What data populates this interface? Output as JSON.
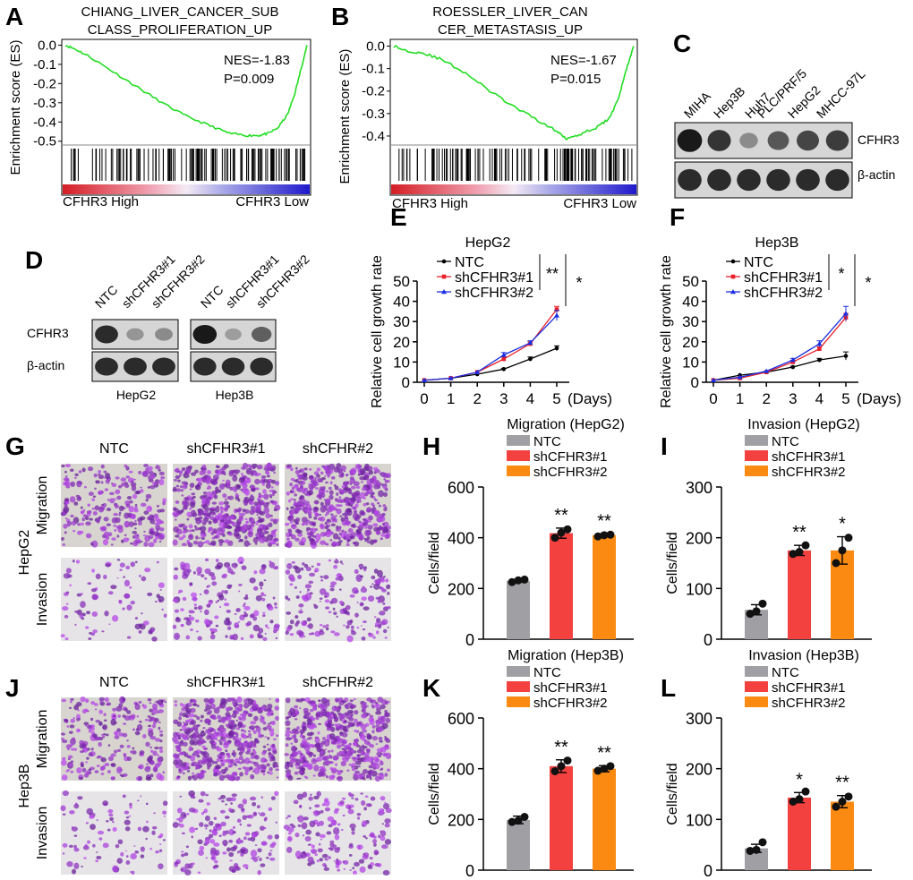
{
  "colors": {
    "green": "#22dd22",
    "ntc_line": "#000000",
    "sh1_line": "#e8202a",
    "sh2_line": "#1a2ee0",
    "bar_ntc": "#a0a0a4",
    "bar_sh1": "#f2413f",
    "bar_sh2": "#fa8a12",
    "hm_low": "#1f18cc",
    "hm_high": "#d41d24"
  },
  "panels": {
    "A": "A",
    "B": "B",
    "C": "C",
    "D": "D",
    "E": "E",
    "F": "F",
    "G": "G",
    "H": "H",
    "I": "I",
    "J": "J",
    "K": "K",
    "L": "L"
  },
  "gsea": {
    "ylabel": "Enrichment score (ES)",
    "xleft": "CFHR3 High",
    "xright": "CFHR3 Low",
    "A": {
      "title1": "CHIANG_LIVER_CANCER_SUB",
      "title2": "CLASS_PROLIFERATION_UP",
      "nes": "NES=-1.83",
      "p": "P=0.009",
      "yticks": [
        "0.0",
        "-0.1",
        "-0.2",
        "-0.3",
        "-0.4",
        "-0.5"
      ],
      "ylim": [
        -0.52,
        0.03
      ],
      "curve": [
        [
          0,
          0.0
        ],
        [
          0.04,
          -0.02
        ],
        [
          0.1,
          -0.06
        ],
        [
          0.2,
          -0.14
        ],
        [
          0.3,
          -0.22
        ],
        [
          0.4,
          -0.3
        ],
        [
          0.5,
          -0.37
        ],
        [
          0.6,
          -0.42
        ],
        [
          0.68,
          -0.46
        ],
        [
          0.75,
          -0.47
        ],
        [
          0.8,
          -0.47
        ],
        [
          0.84,
          -0.46
        ],
        [
          0.88,
          -0.43
        ],
        [
          0.92,
          -0.36
        ],
        [
          0.95,
          -0.25
        ],
        [
          0.98,
          -0.1
        ],
        [
          1.0,
          0.0
        ]
      ]
    },
    "B": {
      "title1": "ROESSLER_LIVER_CAN",
      "title2": "CER_METASTASIS_UP",
      "nes": "NES=-1.67",
      "p": "P=0.015",
      "yticks": [
        "0.0",
        "-0.1",
        "-0.2",
        "-0.3",
        "-0.4"
      ],
      "ylim": [
        -0.44,
        0.03
      ],
      "curve": [
        [
          0,
          0.0
        ],
        [
          0.05,
          -0.02
        ],
        [
          0.12,
          -0.03
        ],
        [
          0.2,
          -0.06
        ],
        [
          0.3,
          -0.12
        ],
        [
          0.4,
          -0.2
        ],
        [
          0.5,
          -0.27
        ],
        [
          0.6,
          -0.33
        ],
        [
          0.68,
          -0.38
        ],
        [
          0.72,
          -0.41
        ],
        [
          0.78,
          -0.39
        ],
        [
          0.85,
          -0.36
        ],
        [
          0.9,
          -0.32
        ],
        [
          0.94,
          -0.22
        ],
        [
          0.97,
          -0.1
        ],
        [
          1.0,
          0.0
        ]
      ]
    }
  },
  "blotC": {
    "lanes": [
      "MIHA",
      "Hep3B",
      "Huh7",
      "PLC/PRF/5",
      "HepG2",
      "MHCC-97L"
    ],
    "row1": "CFHR3",
    "row2": "β-actin",
    "intensity": [
      1.0,
      0.85,
      0.35,
      0.65,
      0.75,
      0.8
    ]
  },
  "blotD": {
    "lanes": [
      "NTC",
      "shCFHR3#1",
      "shCFHR3#2",
      "NTC",
      "shCFHR3#1",
      "shCFHR3#2"
    ],
    "row1": "CFHR3",
    "row2": "β-actin",
    "cell1": "HepG2",
    "cell2": "Hep3B",
    "intensity": [
      0.9,
      0.3,
      0.35,
      1.0,
      0.25,
      0.6
    ]
  },
  "chart_data": [
    {
      "panel": "E",
      "type": "line",
      "title": "HepG2",
      "ylabel": "Relative cell growth rate",
      "xlabel": "(Days)",
      "x": [
        0,
        1,
        2,
        3,
        4,
        5
      ],
      "ylim": [
        0,
        50
      ],
      "yticks": [
        0,
        10,
        20,
        30,
        40,
        50
      ],
      "series": [
        {
          "name": "NTC",
          "values": [
            1,
            2,
            4,
            6.5,
            11.5,
            16.8
          ],
          "err": [
            0,
            0,
            0,
            0.4,
            1,
            1.2
          ]
        },
        {
          "name": "shCFHR3#1",
          "values": [
            1,
            2,
            5,
            11.5,
            19,
            36
          ],
          "err": [
            0,
            0,
            0,
            1,
            1,
            1.5
          ]
        },
        {
          "name": "shCFHR3#2",
          "values": [
            1,
            2,
            5,
            13.5,
            19.5,
            33
          ],
          "err": [
            0,
            0,
            0,
            1.2,
            1,
            2.5
          ]
        }
      ],
      "sig": [
        "**",
        "*"
      ]
    },
    {
      "panel": "F",
      "type": "line",
      "title": "Hep3B",
      "ylabel": "Relative cell growth rate",
      "xlabel": "(Days)",
      "x": [
        0,
        1,
        2,
        3,
        4,
        5
      ],
      "ylim": [
        0,
        50
      ],
      "yticks": [
        0,
        10,
        20,
        30,
        40,
        50
      ],
      "series": [
        {
          "name": "NTC",
          "values": [
            1,
            3.5,
            5,
            7.5,
            11,
            13
          ],
          "err": [
            0,
            0,
            0,
            0.4,
            0.8,
            2
          ]
        },
        {
          "name": "shCFHR3#1",
          "values": [
            1,
            2,
            5,
            10,
            16.5,
            32
          ],
          "err": [
            0,
            0,
            0,
            0.8,
            1,
            2
          ]
        },
        {
          "name": "shCFHR3#2",
          "values": [
            1,
            2.5,
            5.5,
            11,
            19,
            34
          ],
          "err": [
            0,
            0,
            0,
            0.8,
            1.5,
            3.5
          ]
        }
      ],
      "sig": [
        "*",
        "*"
      ]
    },
    {
      "panel": "H",
      "type": "bar",
      "title": "Migration (HepG2)",
      "ylabel": "Cells/field",
      "ylim": [
        0,
        600
      ],
      "yticks": [
        0,
        200,
        400,
        600
      ],
      "categories": [
        "NTC",
        "shCFHR3#1",
        "shCFHR3#2"
      ],
      "values": [
        230,
        418,
        410
      ],
      "err": [
        5,
        20,
        5
      ],
      "points": [
        [
          225,
          232,
          235
        ],
        [
          400,
          420,
          433
        ],
        [
          405,
          410,
          412
        ]
      ],
      "sig": [
        "",
        "**",
        "**"
      ]
    },
    {
      "panel": "I",
      "type": "bar",
      "title": "Invasion (HepG2)",
      "ylabel": "Cells/field",
      "ylim": [
        0,
        300
      ],
      "yticks": [
        0,
        100,
        200,
        300
      ],
      "categories": [
        "NTC",
        "shCFHR3#1",
        "shCFHR3#2"
      ],
      "values": [
        58,
        175,
        175
      ],
      "err": [
        10,
        10,
        27
      ],
      "points": [
        [
          50,
          55,
          70
        ],
        [
          168,
          172,
          185
        ],
        [
          150,
          175,
          200
        ]
      ],
      "sig": [
        "",
        "**",
        "*"
      ]
    },
    {
      "panel": "K",
      "type": "bar",
      "title": "Migration (Hep3B)",
      "ylabel": "Cells/field",
      "ylim": [
        0,
        600
      ],
      "yticks": [
        0,
        200,
        400,
        600
      ],
      "categories": [
        "NTC",
        "shCFHR3#1",
        "shCFHR3#2"
      ],
      "values": [
        198,
        410,
        400
      ],
      "err": [
        15,
        25,
        12
      ],
      "points": [
        [
          190,
          195,
          210
        ],
        [
          390,
          410,
          432
        ],
        [
          392,
          400,
          410
        ]
      ],
      "sig": [
        "",
        "**",
        "**"
      ]
    },
    {
      "panel": "L",
      "type": "bar",
      "title": "Invasion (Hep3B)",
      "ylabel": "Cells/field",
      "ylim": [
        0,
        300
      ],
      "yticks": [
        0,
        100,
        200,
        300
      ],
      "categories": [
        "NTC",
        "shCFHR3#1",
        "shCFHR3#2"
      ],
      "values": [
        43,
        143,
        135
      ],
      "err": [
        8,
        10,
        12
      ],
      "points": [
        [
          38,
          40,
          55
        ],
        [
          135,
          140,
          155
        ],
        [
          125,
          135,
          145
        ]
      ],
      "sig": [
        "",
        "*",
        "**"
      ]
    }
  ],
  "micro": {
    "G": {
      "cols": [
        "NTC",
        "shCFHR3#1",
        "shCFHR#2"
      ],
      "rows": [
        "Migration",
        "Invasion"
      ],
      "cell": "HepG2"
    },
    "J": {
      "cols": [
        "NTC",
        "shCFHR3#1",
        "shCFHR#2"
      ],
      "rows": [
        "Migration",
        "Invasion"
      ],
      "cell": "Hep3B"
    }
  }
}
